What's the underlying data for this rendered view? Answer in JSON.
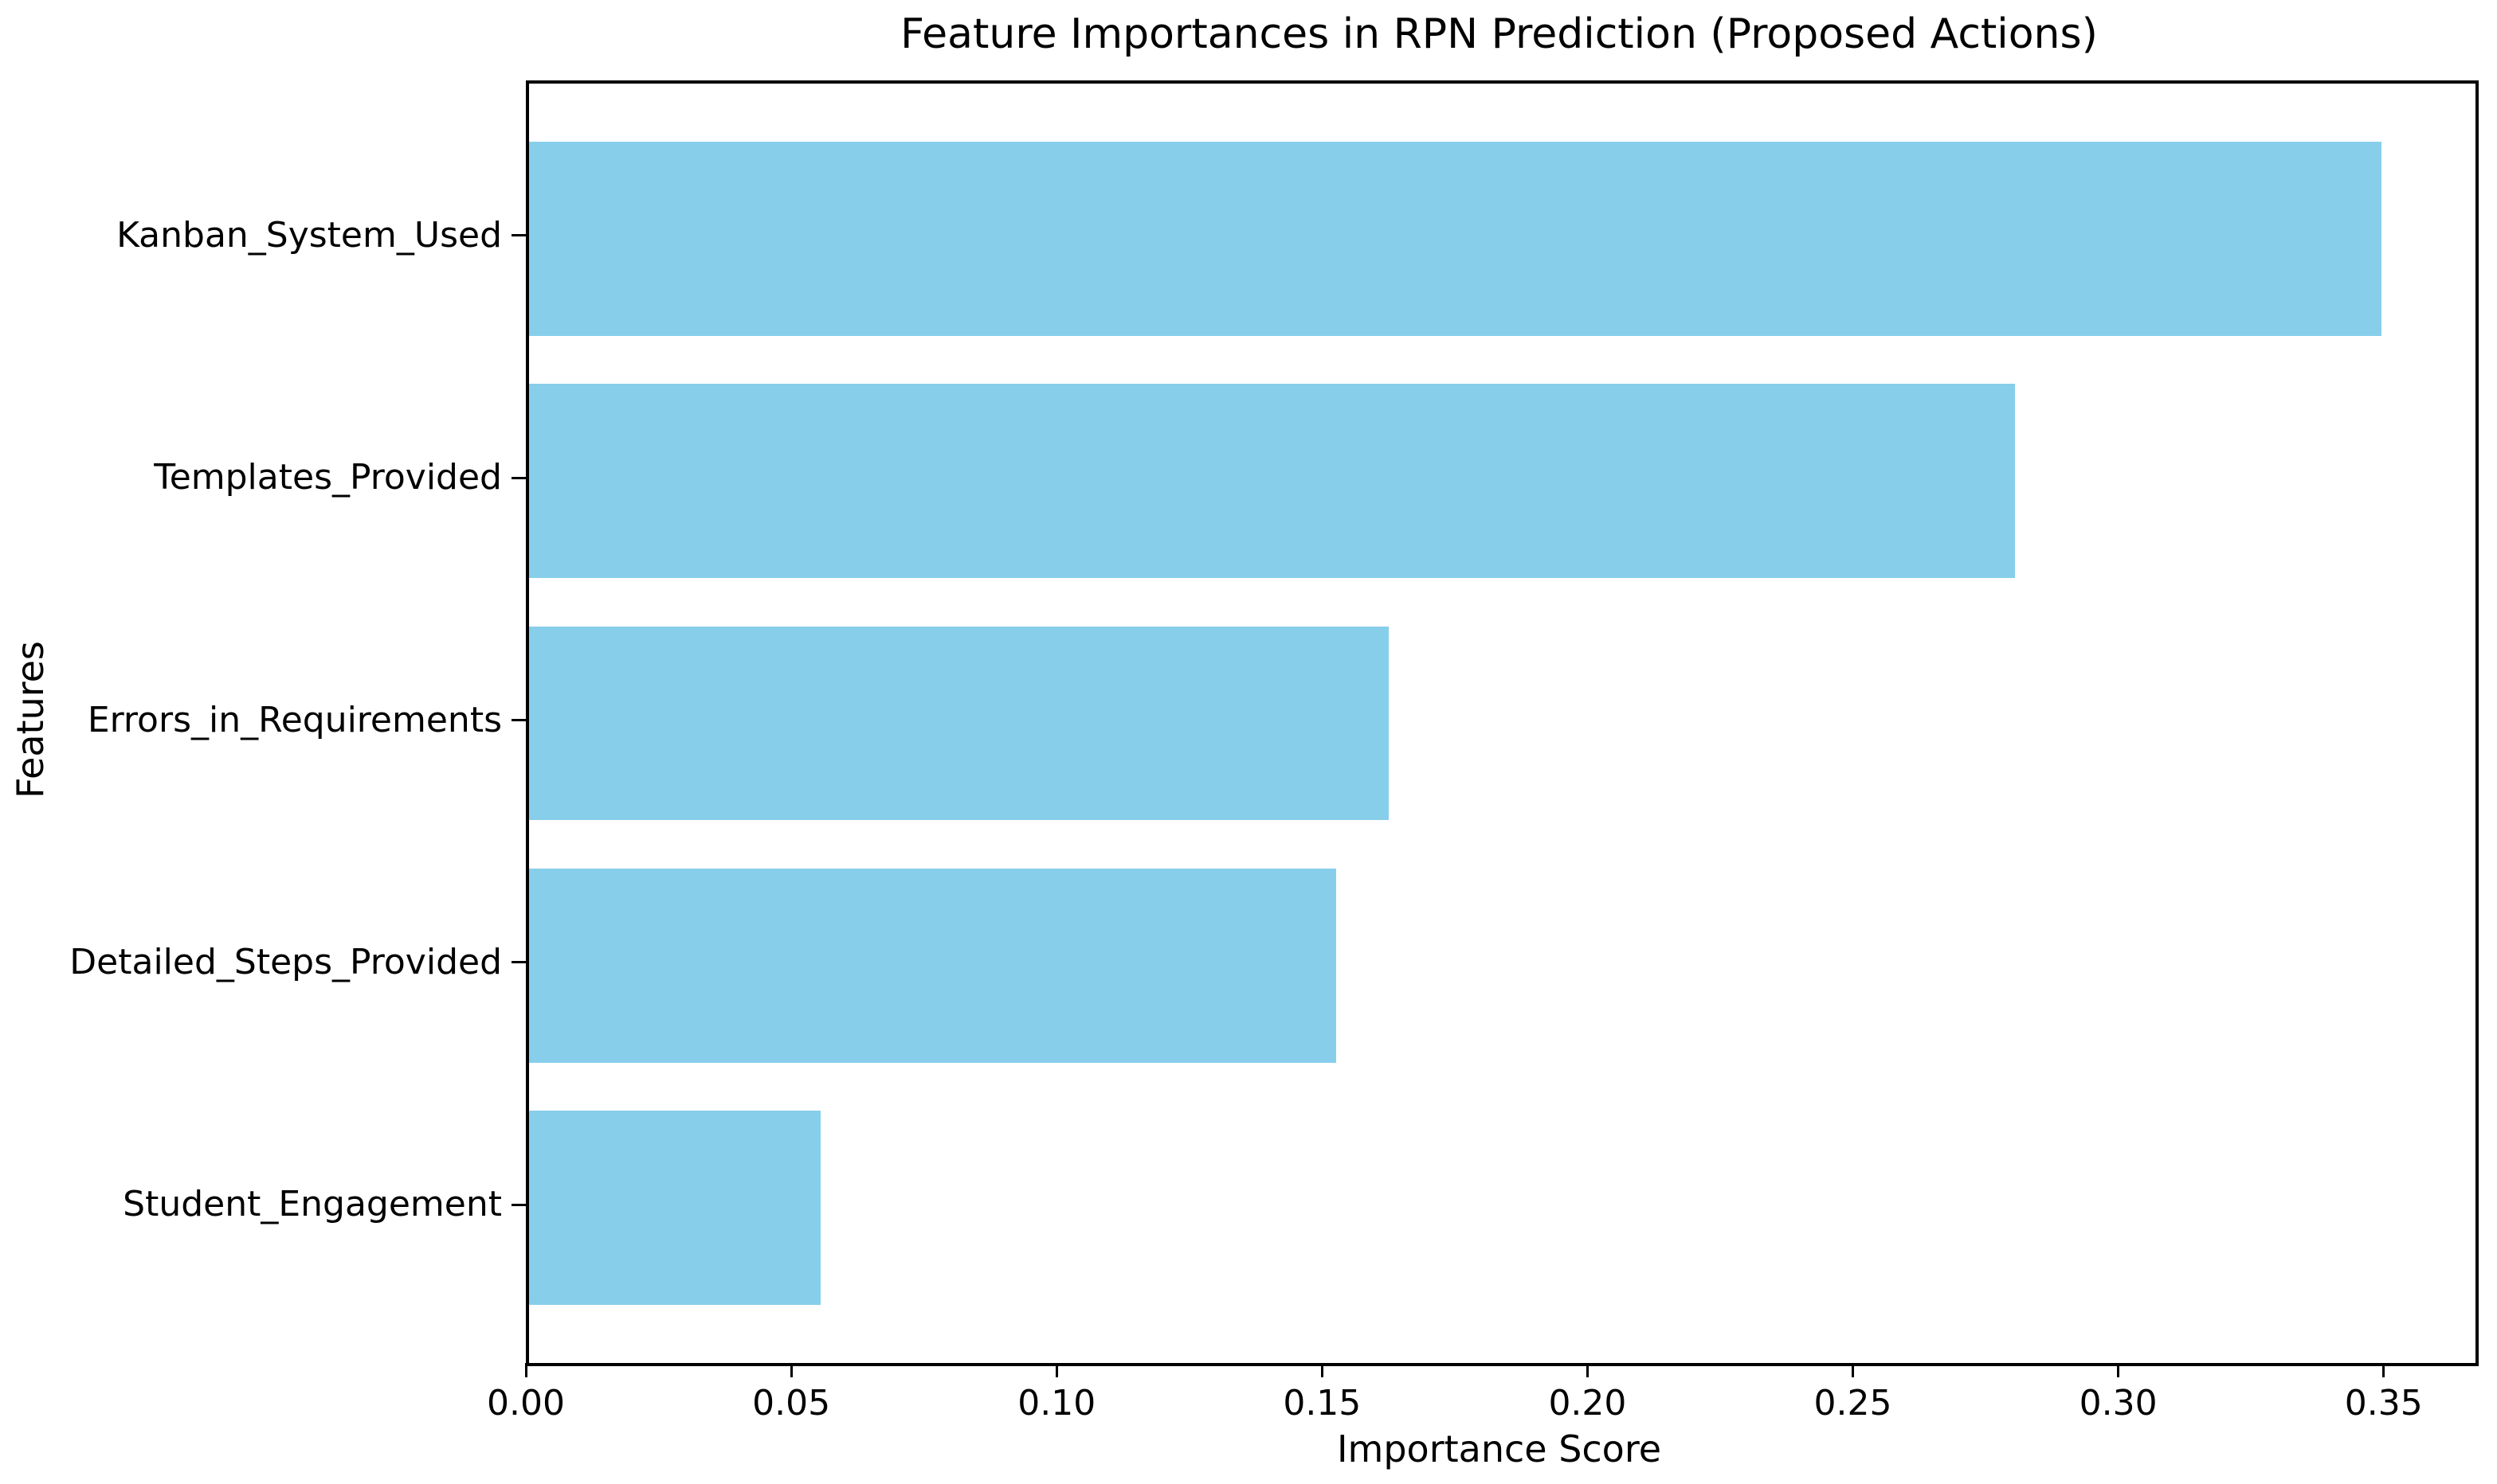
{
  "chart_data": {
    "type": "bar",
    "orientation": "horizontal",
    "title": "Feature Importances in RPN Prediction (Proposed Actions)",
    "xlabel": "Importance Score",
    "ylabel": "Features",
    "categories": [
      "Kanban_System_Used",
      "Templates_Provided",
      "Errors_in_Requirements",
      "Detailed_Steps_Provided",
      "Student_Engagement"
    ],
    "values": [
      0.349,
      0.28,
      0.162,
      0.152,
      0.055
    ],
    "xticks": [
      "0.00",
      "0.05",
      "0.10",
      "0.15",
      "0.20",
      "0.25",
      "0.30",
      "0.35"
    ],
    "xlim": [
      0,
      0.3667
    ],
    "bar_color": "#87CEEB",
    "axis_color": "#000000",
    "grid": false,
    "legend": null
  }
}
